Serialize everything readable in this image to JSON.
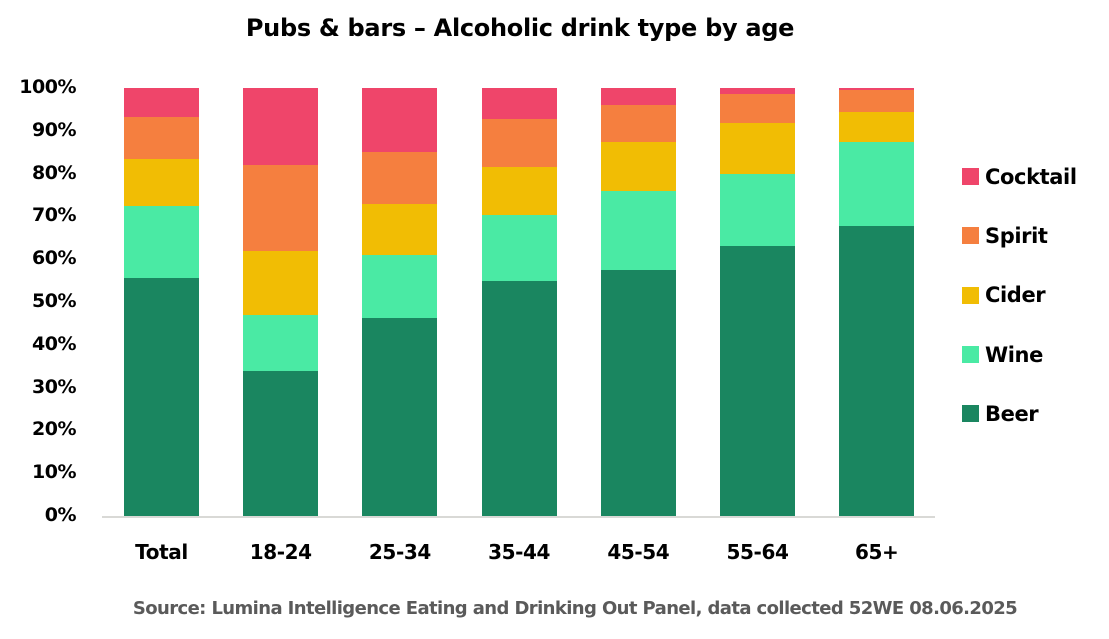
{
  "chart_data": {
    "type": "bar",
    "stacked": true,
    "title": "Pubs & bars – Alcoholic drink type by age",
    "xlabel": "",
    "ylabel": "",
    "ylim": [
      0,
      100
    ],
    "yticks": [
      "0%",
      "10%",
      "20%",
      "30%",
      "40%",
      "50%",
      "60%",
      "70%",
      "80%",
      "90%",
      "100%"
    ],
    "grid": false,
    "legend_position": "right",
    "categories": [
      "Total",
      "18-24",
      "25-34",
      "35-44",
      "45-54",
      "55-64",
      "65+"
    ],
    "series": [
      {
        "name": "Beer",
        "color": "#1a8660",
        "values": [
          55.6,
          33.9,
          46.3,
          54.9,
          57.5,
          63.1,
          67.8
        ]
      },
      {
        "name": "Wine",
        "color": "#4aeaa4",
        "values": [
          16.8,
          13.1,
          14.7,
          15.4,
          18.5,
          16.8,
          19.6
        ]
      },
      {
        "name": "Cider",
        "color": "#f1bd04",
        "values": [
          11.0,
          15.0,
          11.9,
          11.2,
          11.4,
          11.9,
          7.0
        ]
      },
      {
        "name": "Spirit",
        "color": "#f57f3f",
        "values": [
          9.8,
          20.1,
          12.1,
          11.2,
          8.6,
          6.8,
          5.1
        ]
      },
      {
        "name": "Cocktail",
        "color": "#ef456a",
        "values": [
          6.8,
          18.0,
          15.0,
          7.2,
          4.0,
          1.4,
          0.5
        ]
      }
    ],
    "legend_order": [
      "Cocktail",
      "Spirit",
      "Cider",
      "Wine",
      "Beer"
    ],
    "source": "Source: Lumina Intelligence Eating and Drinking Out Panel, data collected 52WE 08.06.2025"
  }
}
